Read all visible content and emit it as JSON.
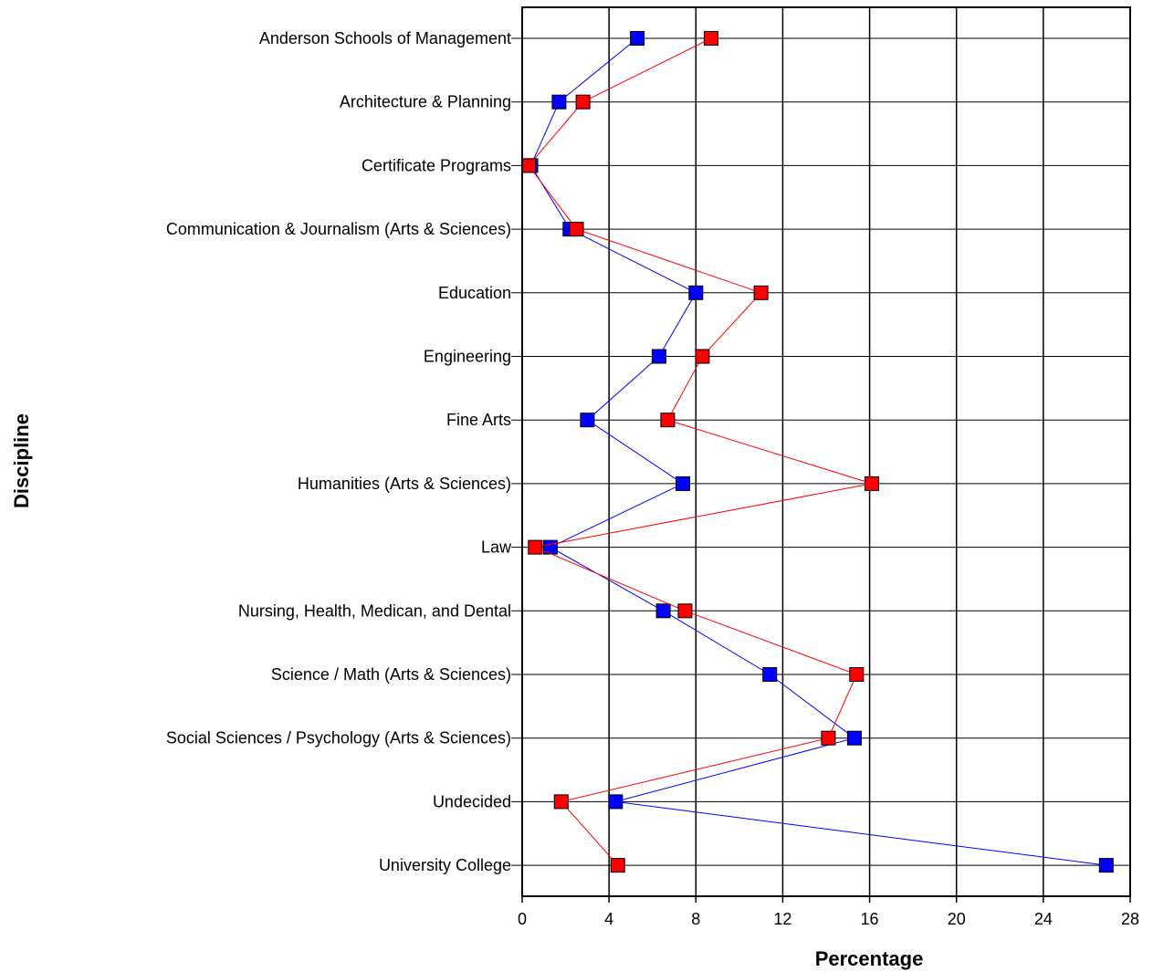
{
  "chart_data": {
    "type": "line",
    "orientation": "horizontal",
    "title": "",
    "xlabel": "Percentage",
    "ylabel": "Discipline",
    "xlim": [
      0,
      28
    ],
    "xticks": [
      0,
      4,
      8,
      12,
      16,
      20,
      24,
      28
    ],
    "grid": true,
    "legend": "none",
    "categories": [
      "Anderson Schools of Management",
      "Architecture & Planning",
      "Certificate Programs",
      "Communication & Journalism (Arts & Sciences)",
      "Education",
      "Engineering",
      "Fine Arts",
      "Humanities (Arts & Sciences)",
      "Law",
      "Nursing, Health, Medican, and Dental",
      "Science / Math (Arts & Sciences)",
      "Social Sciences / Psychology (Arts & Sciences)",
      "Undecided",
      "University College"
    ],
    "series": [
      {
        "color": "#0000ff",
        "marker": "square",
        "values": [
          5.3,
          1.7,
          0.4,
          2.2,
          8.0,
          6.3,
          3.0,
          7.4,
          1.3,
          6.5,
          11.4,
          15.3,
          4.3,
          26.9
        ]
      },
      {
        "color": "#ff0000",
        "marker": "square",
        "values": [
          8.7,
          2.8,
          0.3,
          2.5,
          11.0,
          8.3,
          6.7,
          16.1,
          0.6,
          7.5,
          15.4,
          14.1,
          1.8,
          4.4
        ]
      }
    ]
  }
}
